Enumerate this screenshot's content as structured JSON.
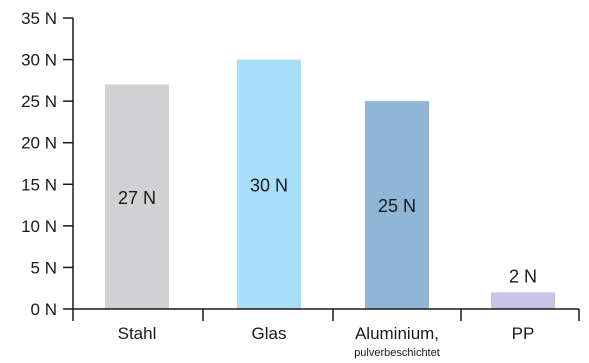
{
  "chart_data": {
    "type": "bar",
    "categories": [
      "Stahl",
      "Glas",
      "Aluminium,",
      "PP"
    ],
    "category_sublabels": [
      "",
      "",
      "pulverbeschichtet",
      ""
    ],
    "values": [
      27,
      30,
      25,
      2
    ],
    "value_labels": [
      "27 N",
      "30 N",
      "25 N",
      "2 N"
    ],
    "data_label_position": [
      "inside",
      "inside",
      "inside",
      "above"
    ],
    "colors": [
      "#d1d1d3",
      "#a9def8",
      "#8fb6d7",
      "#c7c5e5"
    ],
    "ylim": [
      0,
      35
    ],
    "yticks": [
      0,
      5,
      10,
      15,
      20,
      25,
      30,
      35
    ],
    "ytick_labels": [
      "0 N",
      "5 N",
      "10 N",
      "15 N",
      "20 N",
      "25 N",
      "30 N",
      "35 N"
    ],
    "title": "",
    "xlabel": "",
    "ylabel": "",
    "grid": false,
    "legend": "none"
  }
}
